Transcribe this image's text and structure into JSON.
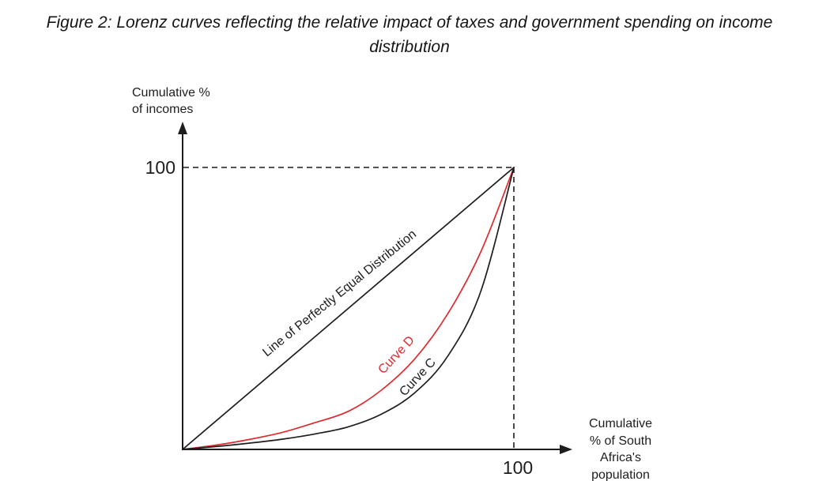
{
  "figure": {
    "title": "Figure 2: Lorenz curves reflecting the relative impact of taxes and government spending on income distribution"
  },
  "labels": {
    "y_axis_title": "Cumulative %\nof incomes",
    "x_axis_title": "Cumulative\n% of South\nAfrica's\npopulation"
  },
  "colors": {
    "ink": "#1d1d1d",
    "curve_d_red": "#de2a2e",
    "background": "#ffffff"
  },
  "chart_data": {
    "type": "line",
    "title": "Figure 2: Lorenz curves reflecting the relative impact of taxes and government spending on income distribution",
    "xlabel": "Cumulative % of South Africa's population",
    "ylabel": "Cumulative % of incomes",
    "xlim": [
      0,
      100
    ],
    "ylim": [
      0,
      100
    ],
    "grid": false,
    "legend_position": "labels drawn along lines",
    "x_tick_labels": [
      "100"
    ],
    "y_tick_labels": [
      "100"
    ],
    "guide_lines": {
      "style": "dashed",
      "horizontal_at_y": 100,
      "vertical_at_x": 100
    },
    "series": [
      {
        "name": "Line of Perfectly Equal Distribution",
        "color": "#1d1d1d",
        "shape": "straight",
        "points": [
          [
            0,
            0
          ],
          [
            100,
            100
          ]
        ]
      },
      {
        "name": "Curve D",
        "color": "#de2a2e",
        "shape": "lorenz",
        "points": [
          [
            0,
            0
          ],
          [
            10,
            1.5
          ],
          [
            20,
            3.5
          ],
          [
            30,
            6
          ],
          [
            40,
            9.5
          ],
          [
            50,
            13.5
          ],
          [
            60,
            21
          ],
          [
            70,
            32
          ],
          [
            80,
            48
          ],
          [
            90,
            70
          ],
          [
            100,
            100
          ]
        ]
      },
      {
        "name": "Curve C",
        "color": "#1d1d1d",
        "shape": "lorenz",
        "points": [
          [
            0,
            0
          ],
          [
            10,
            1
          ],
          [
            20,
            2.2
          ],
          [
            30,
            3.6
          ],
          [
            40,
            5.5
          ],
          [
            50,
            8
          ],
          [
            60,
            12.5
          ],
          [
            70,
            20
          ],
          [
            80,
            33
          ],
          [
            90,
            56
          ],
          [
            100,
            100
          ]
        ]
      }
    ]
  }
}
